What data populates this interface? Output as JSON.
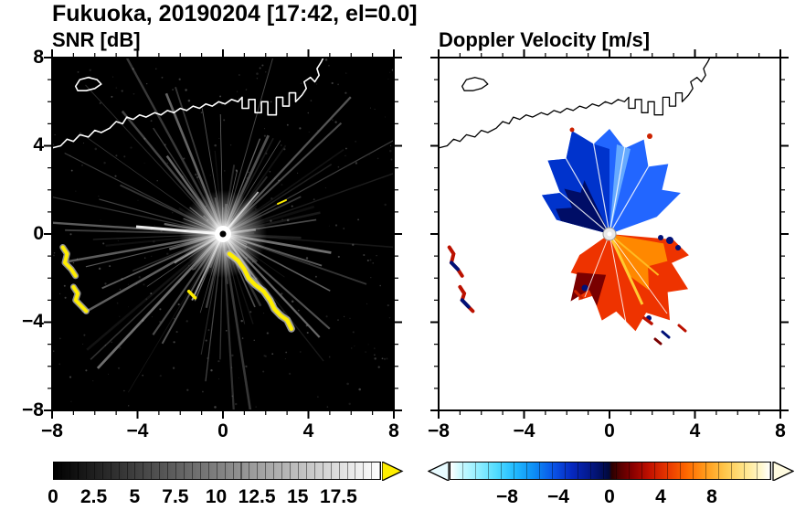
{
  "header": {
    "title": "Fukuoka, 20190204 [17:42, el=0.0]"
  },
  "panels": {
    "snr": {
      "title": "SNR [dB]",
      "xticks": [
        "−8",
        "−4",
        "0",
        "4",
        "8"
      ],
      "yticks": [
        "8",
        "4",
        "0",
        "−4",
        "−8"
      ],
      "colorbar_ticks": [
        "0",
        "2.5",
        "5",
        "7.5",
        "10",
        "12.5",
        "15",
        "17.5"
      ]
    },
    "doppler": {
      "title": "Doppler Velocity [m/s]",
      "xticks": [
        "−8",
        "−4",
        "0",
        "4",
        "8"
      ],
      "colorbar_ticks": [
        "−8",
        "−4",
        "0",
        "4",
        "8"
      ]
    }
  },
  "colors": {
    "snr_over_range_yellow": "#ffee00",
    "velocity_negative_blue": "#1155ee",
    "velocity_negative_navy": "#000d66",
    "velocity_positive_red": "#ee3300",
    "velocity_positive_orange": "#ff8800",
    "snr_background": "#000000",
    "doppler_background": "#ffffff"
  },
  "chart_data": [
    {
      "type": "heatmap",
      "subtype": "radar-ppi",
      "panel": "left",
      "title": "SNR [dB]",
      "site": "Fukuoka",
      "date": "20190204",
      "time": "17:42",
      "elevation_deg": 0.0,
      "xlim": [
        -8,
        8
      ],
      "ylim": [
        -8,
        8
      ],
      "xticks": [
        -8,
        -4,
        0,
        4,
        8
      ],
      "yticks": [
        8,
        4,
        0,
        -4,
        -8
      ],
      "grid": false,
      "colorbar": {
        "orientation": "horizontal",
        "range": [
          0,
          20
        ],
        "tick_values": [
          0,
          2.5,
          5,
          7.5,
          10,
          12.5,
          15,
          17.5
        ],
        "colormap": "grayscale black to white",
        "over_range_arrow_color": "yellow"
      },
      "features": [
        "radar at origin (0,0): bright white glow with small black dot",
        "radial ground-clutter streaks of low-to-moderate SNR emanating from the origin in all directions over a black (no echo) background",
        "coastline of Hakata Bay traced in white across the upper half, small island outline near (-6.4, 6.8), harbor structures near (1-3.5, 5.5-6.5)",
        "saturated high-SNR arc (yellow, above 17.5 dB) curving from about (0.3,-0.9) to (3.2,-4.3)",
        "two saturated arc clusters near (-7.2,-1.2) and (-6.7,-3.0)",
        "small isolated echo near (-1.5,-2.8)"
      ]
    },
    {
      "type": "heatmap",
      "subtype": "radar-ppi",
      "panel": "right",
      "title": "Doppler Velocity [m/s]",
      "site": "Fukuoka",
      "date": "20190204",
      "time": "17:42",
      "elevation_deg": 0.0,
      "xlim": [
        -8,
        8
      ],
      "ylim": [
        -8,
        8
      ],
      "xticks": [
        -8,
        -4,
        0,
        4,
        8
      ],
      "yticks": [
        8,
        4,
        0,
        -4,
        -8
      ],
      "grid": false,
      "colorbar": {
        "orientation": "horizontal",
        "range": [
          -12.5,
          12.5
        ],
        "tick_values": [
          -8,
          -4,
          0,
          4,
          8
        ],
        "colormap": "diverging: white-cyan-blue-navy for negative, dark red-red-orange-yellow-white for positive",
        "under_over_arrows": true
      },
      "features": [
        "fan of negative (approaching, blue) velocities north of the radar, about -2 to -10 m/s, darkest navy on its western flank",
        "fan of positive (receding, red-orange) velocities south to southeast of the radar, about +2 to +9 m/s with yellow streaks",
        "dark-red patch near +10 m/s on the southwestern edge of the positive fan",
        "mixed-sign echo arcs near (-7.2,-1.2), (-6.7,-3.0) and (-1.5,-2.8)",
        "scattered small echoes near (2.2,-4.4)",
        "coastline traced in black over a white (no echo) background"
      ]
    }
  ]
}
